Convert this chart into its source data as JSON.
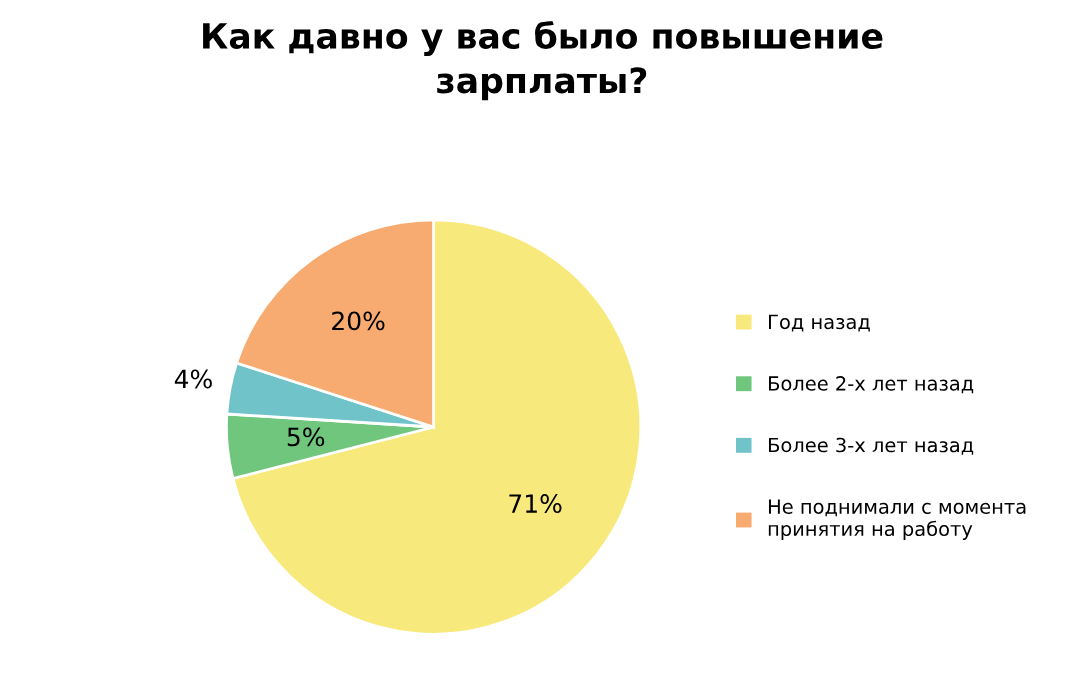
{
  "chart_data": {
    "type": "pie",
    "title": "Как давно у вас было повышение\nзарплаты?",
    "categories": [
      "Год назад",
      "Более 2-х лет назад",
      "Более 3-х лет назад",
      "Не поднимали с момента\nпринятия на работу"
    ],
    "values": [
      71,
      5,
      4,
      20
    ],
    "colors": [
      "#f8e97c",
      "#6fc67c",
      "#70c4c9",
      "#f8ab70"
    ],
    "value_labels": [
      "71%",
      "5%",
      "4%",
      "20%"
    ],
    "legend": "right"
  }
}
